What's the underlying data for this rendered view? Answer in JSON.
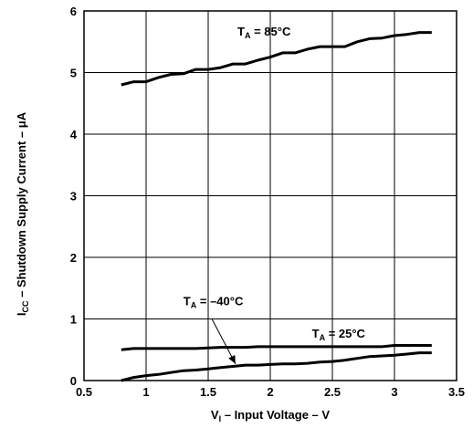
{
  "chart_data": {
    "type": "line",
    "xlabel": {
      "main": "V",
      "sub": "I",
      "rest": " – Input Voltage – V"
    },
    "ylabel": {
      "main": "I",
      "sub": "CC",
      "rest": " – Shutdown Supply Current – μA"
    },
    "xlim": [
      0.5,
      3.5
    ],
    "ylim": [
      0,
      6
    ],
    "xticks": [
      "0.5",
      "1",
      "1.5",
      "2",
      "2.5",
      "3",
      "3.5"
    ],
    "yticks": [
      "0",
      "1",
      "2",
      "3",
      "4",
      "5",
      "6"
    ],
    "grid": true,
    "series": [
      {
        "name": {
          "main": "T",
          "sub": "A",
          "rest": " = 85°C"
        },
        "x": [
          0.8,
          0.9,
          1.0,
          1.1,
          1.2,
          1.3,
          1.4,
          1.5,
          1.6,
          1.7,
          1.8,
          1.9,
          2.0,
          2.1,
          2.2,
          2.3,
          2.4,
          2.5,
          2.6,
          2.7,
          2.8,
          2.9,
          3.0,
          3.1,
          3.2,
          3.3
        ],
        "y": [
          4.8,
          4.85,
          4.85,
          4.92,
          4.97,
          4.98,
          5.05,
          5.05,
          5.08,
          5.14,
          5.14,
          5.2,
          5.25,
          5.32,
          5.32,
          5.38,
          5.42,
          5.42,
          5.42,
          5.5,
          5.55,
          5.56,
          5.6,
          5.62,
          5.65,
          5.65
        ]
      },
      {
        "name": {
          "main": "T",
          "sub": "A",
          "rest": " = –40°C"
        },
        "x": [
          0.8,
          0.9,
          1.0,
          1.1,
          1.2,
          1.3,
          1.4,
          1.5,
          1.6,
          1.7,
          1.8,
          1.9,
          2.0,
          2.1,
          2.2,
          2.3,
          2.4,
          2.5,
          2.6,
          2.7,
          2.8,
          2.9,
          3.0,
          3.1,
          3.2,
          3.3
        ],
        "y": [
          0.5,
          0.52,
          0.52,
          0.52,
          0.52,
          0.52,
          0.52,
          0.53,
          0.54,
          0.54,
          0.54,
          0.55,
          0.55,
          0.55,
          0.55,
          0.55,
          0.55,
          0.55,
          0.55,
          0.55,
          0.55,
          0.55,
          0.57,
          0.57,
          0.57,
          0.57
        ]
      },
      {
        "name": {
          "main": "T",
          "sub": "A",
          "rest": " = 25°C"
        },
        "x": [
          0.8,
          0.9,
          1.0,
          1.1,
          1.2,
          1.3,
          1.4,
          1.5,
          1.6,
          1.7,
          1.8,
          1.9,
          2.0,
          2.1,
          2.2,
          2.3,
          2.4,
          2.5,
          2.6,
          2.7,
          2.8,
          2.9,
          3.0,
          3.1,
          3.2,
          3.3
        ],
        "y": [
          0.0,
          0.05,
          0.08,
          0.1,
          0.13,
          0.16,
          0.17,
          0.19,
          0.21,
          0.23,
          0.25,
          0.25,
          0.26,
          0.27,
          0.27,
          0.28,
          0.3,
          0.31,
          0.33,
          0.36,
          0.39,
          0.4,
          0.41,
          0.43,
          0.45,
          0.45
        ]
      }
    ]
  }
}
